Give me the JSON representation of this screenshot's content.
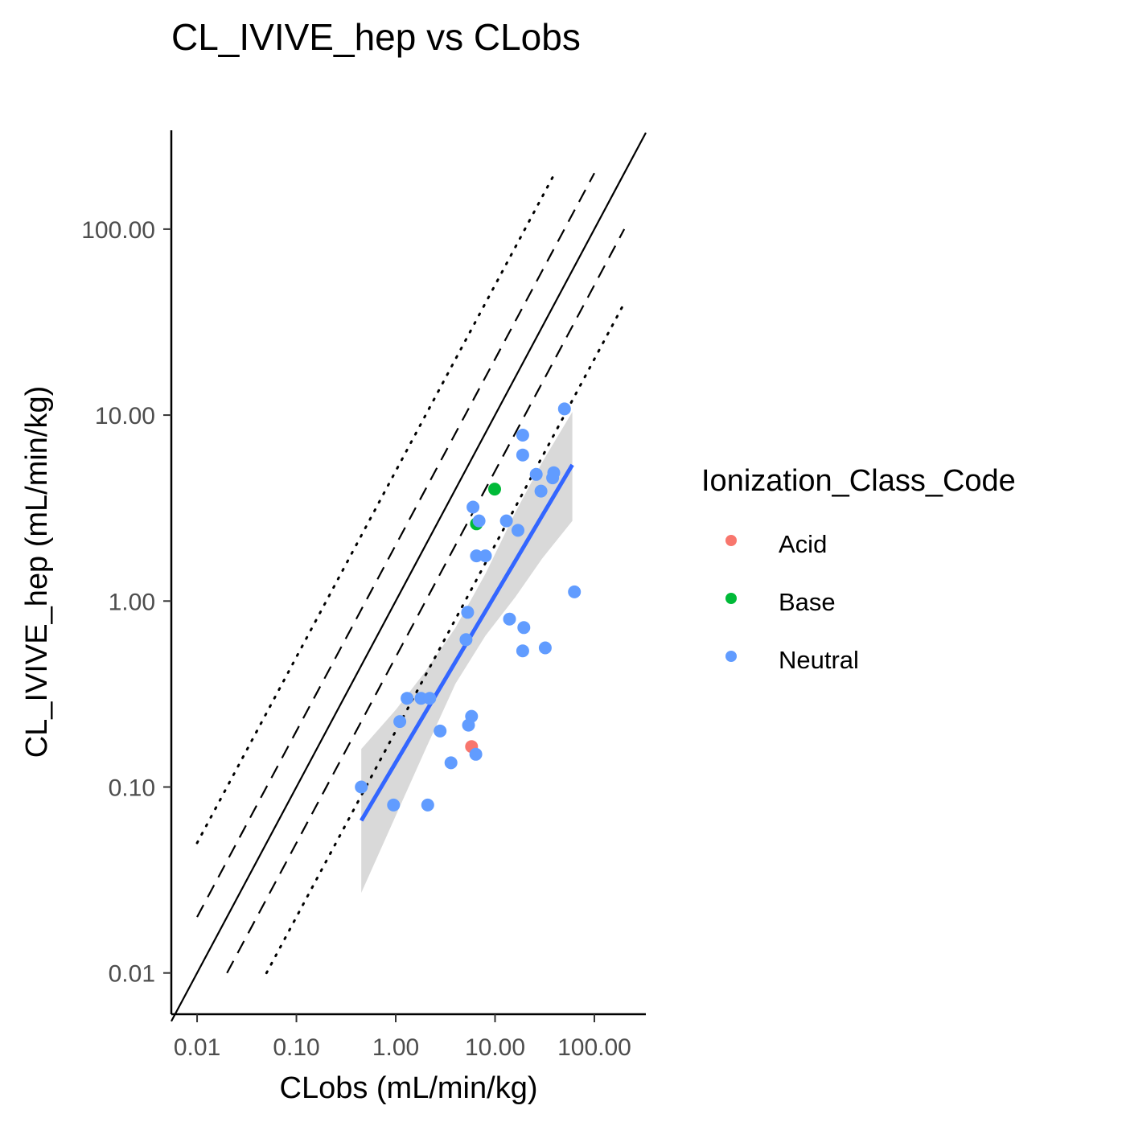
{
  "chart_data": {
    "type": "scatter",
    "title": "CL_IVIVE_hep vs CLobs",
    "xlabel": "CLobs (mL/min/kg)",
    "ylabel": "CL_IVIVE_hep (mL/min/kg)",
    "x_scale": "log10",
    "y_scale": "log10",
    "xlim": [
      0.0055,
      330
    ],
    "ylim": [
      0.006,
      340
    ],
    "x_ticks": [
      0.01,
      0.1,
      1,
      10,
      100
    ],
    "x_tick_labels": [
      "0.01",
      "0.10",
      "1.00",
      "10.00",
      "100.00"
    ],
    "y_ticks": [
      0.01,
      0.1,
      1,
      10,
      100
    ],
    "y_tick_labels": [
      "0.01",
      "0.10",
      "1.00",
      "10.00",
      "100.00"
    ],
    "grid": false,
    "legend": {
      "title": "Ionization_Class_Code",
      "placement": "right",
      "entries": [
        {
          "label": "Acid",
          "color": "#F8766D"
        },
        {
          "label": "Base",
          "color": "#00BA38"
        },
        {
          "label": "Neutral",
          "color": "#619CFF"
        }
      ]
    },
    "series": [
      {
        "name": "Acid",
        "color": "#F8766D",
        "points": [
          [
            5.8,
            0.165
          ]
        ]
      },
      {
        "name": "Base",
        "color": "#00BA38",
        "points": [
          [
            6.5,
            2.6
          ],
          [
            9.9,
            4.0
          ]
        ]
      },
      {
        "name": "Neutral",
        "color": "#619CFF",
        "points": [
          [
            0.45,
            0.1
          ],
          [
            0.95,
            0.08
          ],
          [
            2.1,
            0.08
          ],
          [
            1.1,
            0.225
          ],
          [
            1.3,
            0.3
          ],
          [
            1.8,
            0.3
          ],
          [
            2.2,
            0.3
          ],
          [
            2.8,
            0.2
          ],
          [
            3.6,
            0.135
          ],
          [
            5.4,
            0.215
          ],
          [
            5.8,
            0.24
          ],
          [
            6.4,
            0.15
          ],
          [
            5.1,
            0.62
          ],
          [
            5.3,
            0.87
          ],
          [
            6.0,
            3.2
          ],
          [
            6.5,
            1.75
          ],
          [
            6.9,
            2.7
          ],
          [
            8.0,
            1.75
          ],
          [
            13.0,
            2.7
          ],
          [
            17.0,
            2.4
          ],
          [
            14.0,
            0.8
          ],
          [
            19.5,
            0.72
          ],
          [
            19.0,
            0.54
          ],
          [
            32.0,
            0.56
          ],
          [
            19.0,
            7.8
          ],
          [
            19.0,
            6.1
          ],
          [
            26.0,
            4.8
          ],
          [
            29.0,
            3.9
          ],
          [
            38.0,
            4.6
          ],
          [
            39.0,
            4.9
          ],
          [
            50.0,
            10.8
          ],
          [
            63.0,
            1.12
          ]
        ]
      }
    ],
    "regression": {
      "method": "lm",
      "color": "#3366FF",
      "fit": [
        [
          0.45,
          0.066
        ],
        [
          60,
          5.4
        ]
      ],
      "ci_band": [
        [
          0.45,
          0.027,
          0.16
        ],
        [
          1.0,
          0.07,
          0.26
        ],
        [
          2.0,
          0.16,
          0.42
        ],
        [
          4.0,
          0.36,
          0.72
        ],
        [
          8.0,
          0.65,
          1.4
        ],
        [
          16.0,
          1.05,
          3.0
        ],
        [
          30.0,
          1.7,
          5.6
        ],
        [
          60.0,
          2.7,
          10.4
        ]
      ],
      "ci_color": "#bfbfbf"
    },
    "reference_lines": [
      {
        "name": "identity",
        "style": "solid",
        "factor": 1,
        "x_range": [
          0.0055,
          330
        ]
      },
      {
        "name": "2-fold upper",
        "style": "dashed",
        "factor": 2,
        "x_range": [
          0.01,
          100
        ]
      },
      {
        "name": "2-fold lower",
        "style": "dashed",
        "factor": 0.5,
        "x_range": [
          0.02,
          200
        ]
      },
      {
        "name": "5-fold upper",
        "style": "dotted",
        "factor": 5,
        "x_range": [
          0.01,
          40
        ]
      },
      {
        "name": "5-fold lower",
        "style": "dotted",
        "factor": 0.2,
        "x_range": [
          0.05,
          200
        ]
      }
    ]
  }
}
